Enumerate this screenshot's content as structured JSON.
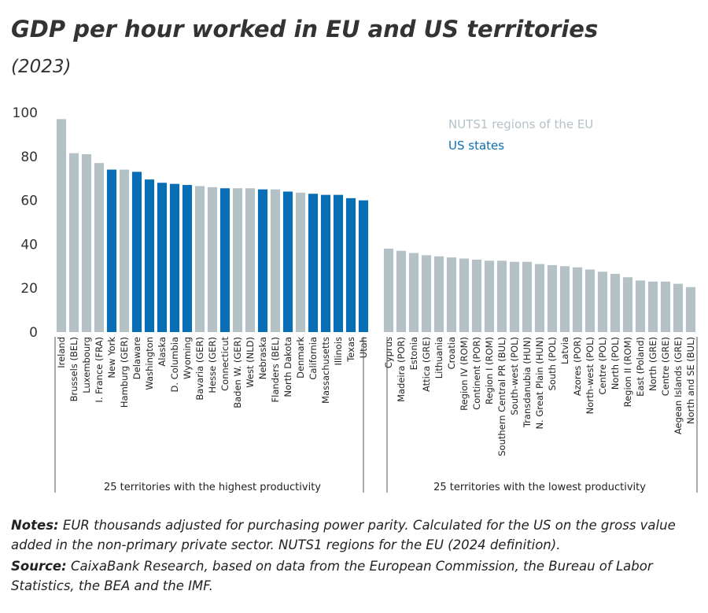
{
  "chart_data": {
    "type": "bar",
    "title": "GDP per hour worked in EU and US territories",
    "subtitle": "(2023)",
    "categories": [
      "Ireland",
      "Brussels (BEL)",
      "Luxembourg",
      "I. France (FRA)",
      "New York",
      "Hamburg (GER)",
      "Delaware",
      "Washington",
      "Alaska",
      "D. Columbia",
      "Wyoming",
      "Bavaria (GER)",
      "Hesse (GER)",
      "Connecticut",
      "Baden W. (GER)",
      "West (NLD)",
      "Nebraska",
      "Flanders (BEL)",
      "North Dakota",
      "Denmark",
      "California",
      "Massachusetts",
      "Illinois",
      "Texas",
      "Utah",
      null,
      "Cyprus",
      "Madeira (POR)",
      "Estonia",
      "Attica (GRE)",
      "Lithuania",
      "Croatia",
      "Region IV (ROM)",
      "Continent (POR)",
      "Region I (ROM)",
      "Southern Central PR (BUL)",
      "South-west (POL)",
      "Transdanubia (HUN)",
      "N. Great Plain (HUN)",
      "South (POL)",
      "Latvia",
      "Azores (POR)",
      "North-west (POL)",
      "Centre (POL)",
      "North (POL)",
      "Region II (ROM)",
      "East (Poland)",
      "North (GRE)",
      "Centre (GRE)",
      "Aegean Islands (GRE)",
      "North and SE (BUL)"
    ],
    "series": [
      {
        "name": "NUTS1 regions of the EU",
        "color": "#b4c1c7",
        "values": [
          97,
          81.5,
          81,
          77,
          null,
          74,
          null,
          null,
          null,
          null,
          null,
          66.5,
          66,
          null,
          65.5,
          65.5,
          null,
          65,
          null,
          63.5,
          null,
          null,
          null,
          null,
          null,
          null,
          38,
          37,
          36,
          35,
          34.5,
          34,
          33.5,
          33,
          32.5,
          32.5,
          32,
          32,
          31,
          30.5,
          30,
          29.5,
          28.5,
          27.5,
          26.5,
          25,
          23.5,
          23,
          23,
          22,
          20.5
        ]
      },
      {
        "name": "US states",
        "color": "#0a6eb4",
        "values": [
          null,
          null,
          null,
          null,
          74,
          null,
          73,
          69.5,
          68,
          67.5,
          67,
          null,
          null,
          65.5,
          null,
          null,
          65,
          null,
          64,
          null,
          63,
          62.5,
          62.5,
          61,
          60,
          null,
          null,
          null,
          null,
          null,
          null,
          null,
          null,
          null,
          null,
          null,
          null,
          null,
          null,
          null,
          null,
          null,
          null,
          null,
          null,
          null,
          null,
          null,
          null,
          null,
          null
        ]
      }
    ],
    "groups": [
      "25 territories with the highest productivity",
      "25 territories with the lowest productivity"
    ],
    "ylim": [
      0,
      100
    ],
    "yticks": [
      0,
      20,
      40,
      60,
      80,
      100
    ],
    "grid": false,
    "legend": "top-right"
  },
  "notes": {
    "label": "Notes:",
    "text": "EUR thousands adjusted for purchasing power parity. Calculated for the US on the gross value added in the non-primary private sector. NUTS1 regions for the EU (2024 definition)."
  },
  "source": {
    "label": "Source:",
    "text": "CaixaBank Research, based on data from the European Commission, the Bureau of Labor Statistics, the BEA and the IMF."
  }
}
